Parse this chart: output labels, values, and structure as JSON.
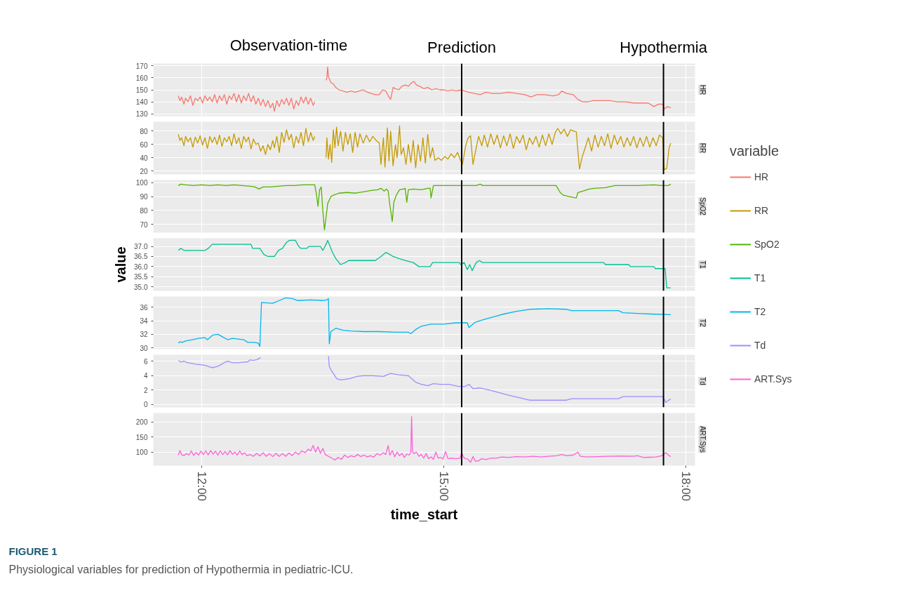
{
  "chart_data": [
    {
      "type": "line",
      "xlim": [
        11.4,
        18.11
      ],
      "xticks": [
        12,
        15,
        18
      ],
      "ylim": [
        128,
        172
      ],
      "yticks": [
        130,
        140,
        150,
        160,
        170
      ],
      "grid": true,
      "tick_labels": "y",
      "legend": "right",
      "legend_title": "variable",
      "annotations": [
        "Observation-time"
      ],
      "ref_lines": [
        {
          "axis": "x",
          "value": 15.22,
          "label": "Prediction",
          "color": "#000000"
        },
        {
          "axis": "x",
          "value": 17.72,
          "label": "Hypothermia",
          "color": "#000000"
        }
      ],
      "series": [
        {
          "name": "HR",
          "color": "#f8766d",
          "x": [
            11.71,
            11.73,
            11.75,
            11.78,
            11.8,
            11.83,
            11.86,
            11.89,
            11.92,
            11.95,
            11.98,
            12.01,
            12.04,
            12.07,
            12.1,
            12.13,
            12.16,
            12.19,
            12.22,
            12.25,
            12.28,
            12.31,
            12.34,
            12.37,
            12.4,
            12.43,
            12.46,
            12.49,
            12.52,
            12.55,
            12.58,
            12.61,
            12.64,
            12.67,
            12.7,
            12.73,
            12.76,
            12.79,
            12.82,
            12.85,
            12.88,
            12.9,
            12.93,
            12.96,
            12.99,
            13.02,
            13.05,
            13.08,
            13.11,
            13.14,
            13.17,
            13.2,
            13.23,
            13.26,
            13.29,
            13.32,
            13.35,
            13.38,
            13.4,
            13.47,
            13.54,
            13.55,
            13.56,
            13.57,
            13.6,
            13.63,
            13.66,
            13.7,
            13.75,
            13.8,
            13.85,
            13.9,
            13.95,
            14.0,
            14.05,
            14.1,
            14.15,
            14.2,
            14.24,
            14.28,
            14.31,
            14.34,
            14.37,
            14.4,
            14.44,
            14.48,
            14.52,
            14.56,
            14.6,
            14.63,
            14.66,
            14.7,
            14.75,
            14.8,
            14.85,
            14.9,
            14.95,
            15.0,
            15.05,
            15.1,
            15.15,
            15.22,
            15.3,
            15.38,
            15.45,
            15.52,
            15.6,
            15.7,
            15.8,
            15.9,
            16.0,
            16.08,
            16.15,
            16.25,
            16.35,
            16.42,
            16.46,
            16.52,
            16.6,
            16.66,
            16.72,
            16.78,
            16.85,
            16.95,
            17.05,
            17.15,
            17.25,
            17.35,
            17.45,
            17.53,
            17.6,
            17.66,
            17.71,
            17.73,
            17.77,
            17.81
          ],
          "values": [
            145,
            141,
            144,
            138,
            143,
            140,
            145,
            137,
            143,
            141,
            144,
            139,
            145,
            141,
            144,
            140,
            146,
            139,
            145,
            141,
            146,
            138,
            145,
            142,
            147,
            140,
            146,
            139,
            145,
            141,
            147,
            140,
            145,
            138,
            143,
            137,
            142,
            136,
            141,
            135,
            139,
            132,
            141,
            136,
            142,
            138,
            143,
            137,
            143,
            134,
            141,
            137,
            144,
            139,
            144,
            138,
            143,
            137,
            140,
            null,
            158,
            160,
            169,
            161,
            156,
            155,
            152,
            150,
            149,
            148,
            149,
            148,
            149,
            150,
            148,
            147,
            146,
            146,
            150,
            149,
            145,
            142,
            152,
            151,
            150,
            153,
            154,
            153,
            156,
            157,
            154,
            153,
            151,
            152,
            150,
            151,
            150,
            150,
            149,
            150,
            149,
            150,
            148,
            147,
            146,
            148,
            147,
            147,
            148,
            147,
            146,
            144,
            146,
            146,
            145,
            146,
            149,
            147,
            146,
            142,
            140,
            140,
            141,
            141,
            141,
            140,
            140,
            139,
            139,
            139,
            136,
            138,
            138,
            134,
            136,
            135
          ]
        }
      ]
    },
    {
      "type": "line",
      "xlim": [
        11.4,
        18.11
      ],
      "xticks": [
        12,
        15,
        18
      ],
      "ylim": [
        15,
        94
      ],
      "yticks": [
        20,
        40,
        60,
        80
      ],
      "grid": true,
      "tick_labels": "y",
      "legend": "right",
      "ref_lines": [
        {
          "axis": "x",
          "value": 15.22,
          "color": "#000000"
        },
        {
          "axis": "x",
          "value": 17.72,
          "color": "#000000"
        }
      ],
      "series": [
        {
          "name": "RR",
          "color": "#c49a00",
          "x": [
            11.71,
            11.73,
            11.75,
            11.78,
            11.8,
            11.83,
            11.86,
            11.89,
            11.92,
            11.95,
            11.98,
            12.01,
            12.04,
            12.07,
            12.1,
            12.13,
            12.16,
            12.19,
            12.22,
            12.25,
            12.28,
            12.31,
            12.34,
            12.37,
            12.4,
            12.43,
            12.46,
            12.49,
            12.52,
            12.55,
            12.58,
            12.61,
            12.64,
            12.67,
            12.7,
            12.73,
            12.76,
            12.79,
            12.82,
            12.85,
            12.88,
            12.9,
            12.93,
            12.96,
            12.99,
            13.02,
            13.05,
            13.08,
            13.11,
            13.14,
            13.17,
            13.2,
            13.23,
            13.26,
            13.29,
            13.32,
            13.35,
            13.38,
            13.4,
            13.47,
            13.54,
            13.55,
            13.57,
            13.59,
            13.61,
            13.63,
            13.65,
            13.67,
            13.69,
            13.72,
            13.75,
            13.78,
            13.81,
            13.84,
            13.87,
            13.9,
            13.93,
            13.96,
            14.0,
            14.04,
            14.08,
            14.12,
            14.16,
            14.2,
            14.22,
            14.25,
            14.27,
            14.3,
            14.32,
            14.34,
            14.37,
            14.4,
            14.42,
            14.45,
            14.47,
            14.5,
            14.53,
            14.56,
            14.59,
            14.62,
            14.65,
            14.68,
            14.71,
            14.74,
            14.77,
            14.8,
            14.83,
            14.86,
            14.89,
            14.93,
            14.97,
            15.01,
            15.05,
            15.09,
            15.13,
            15.17,
            15.2,
            15.23,
            15.27,
            15.3,
            15.33,
            15.36,
            15.4,
            15.43,
            15.47,
            15.5,
            15.54,
            15.58,
            15.62,
            15.66,
            15.7,
            15.74,
            15.78,
            15.82,
            15.86,
            15.9,
            15.94,
            15.98,
            16.02,
            16.06,
            16.1,
            16.14,
            16.18,
            16.22,
            16.26,
            16.3,
            16.34,
            16.38,
            16.41,
            16.45,
            16.49,
            16.53,
            16.57,
            16.61,
            16.64,
            16.66,
            16.68,
            16.71,
            16.75,
            16.79,
            16.83,
            16.87,
            16.91,
            16.95,
            16.99,
            17.03,
            17.07,
            17.11,
            17.15,
            17.19,
            17.23,
            17.27,
            17.31,
            17.35,
            17.39,
            17.43,
            17.47,
            17.51,
            17.55,
            17.59,
            17.63,
            17.67,
            17.71,
            17.73,
            17.76,
            17.79,
            17.81
          ],
          "values": [
            75,
            66,
            70,
            58,
            72,
            64,
            70,
            56,
            71,
            62,
            73,
            59,
            70,
            54,
            72,
            63,
            71,
            60,
            74,
            57,
            70,
            64,
            72,
            58,
            76,
            61,
            70,
            54,
            72,
            64,
            71,
            53,
            68,
            60,
            62,
            50,
            58,
            45,
            60,
            52,
            66,
            55,
            72,
            48,
            78,
            63,
            82,
            67,
            75,
            55,
            72,
            62,
            78,
            58,
            84,
            64,
            78,
            66,
            72,
            null,
            40,
            70,
            38,
            60,
            33,
            82,
            55,
            86,
            58,
            80,
            50,
            78,
            60,
            76,
            48,
            78,
            56,
            76,
            62,
            74,
            64,
            72,
            66,
            62,
            30,
            70,
            26,
            85,
            35,
            80,
            28,
            60,
            40,
            88,
            45,
            55,
            30,
            60,
            33,
            66,
            25,
            60,
            35,
            70,
            32,
            75,
            40,
            55,
            36,
            40,
            36,
            42,
            38,
            46,
            40,
            48,
            38,
            30,
            58,
            70,
            73,
            30,
            55,
            72,
            58,
            74,
            56,
            76,
            60,
            74,
            55,
            73,
            58,
            76,
            54,
            72,
            62,
            74,
            52,
            70,
            60,
            72,
            56,
            74,
            58,
            76,
            60,
            78,
            84,
            76,
            83,
            72,
            82,
            80,
            79,
            50,
            23,
            40,
            55,
            70,
            50,
            74,
            56,
            72,
            58,
            76,
            54,
            74,
            60,
            72,
            56,
            70,
            58,
            72,
            55,
            70,
            57,
            72,
            56,
            70,
            58,
            74,
            70,
            22,
            24,
            55,
            62
          ]
        }
      ]
    },
    {
      "type": "line",
      "xlim": [
        11.4,
        18.11
      ],
      "xticks": [
        12,
        15,
        18
      ],
      "ylim": [
        64,
        102
      ],
      "yticks": [
        70,
        80,
        90,
        100
      ],
      "grid": true,
      "tick_labels": "y",
      "legend": "right",
      "ref_lines": [
        {
          "axis": "x",
          "value": 15.22,
          "color": "#000000"
        },
        {
          "axis": "x",
          "value": 17.72,
          "color": "#000000"
        }
      ],
      "series": [
        {
          "name": "SpO2",
          "color": "#53b400",
          "x": [
            11.71,
            11.74,
            11.8,
            11.9,
            12.0,
            12.1,
            12.2,
            12.3,
            12.4,
            12.5,
            12.6,
            12.66,
            12.71,
            12.76,
            12.85,
            12.95,
            13.05,
            13.15,
            13.25,
            13.35,
            13.4,
            13.42,
            13.44,
            13.46,
            13.48,
            13.5,
            13.52,
            13.54,
            13.56,
            13.6,
            13.63,
            13.7,
            13.8,
            13.9,
            14.0,
            14.1,
            14.18,
            14.22,
            14.26,
            14.29,
            14.31,
            14.33,
            14.36,
            14.38,
            14.41,
            14.45,
            14.5,
            14.52,
            14.54,
            14.56,
            14.62,
            14.72,
            14.8,
            14.83,
            14.84,
            14.87,
            15.0,
            15.22,
            15.4,
            15.45,
            15.48,
            15.8,
            16.2,
            16.39,
            16.44,
            16.48,
            16.55,
            16.64,
            16.66,
            16.72,
            16.8,
            16.86,
            17.0,
            17.12,
            17.4,
            17.6,
            17.7,
            17.78,
            17.81
          ],
          "values": [
            98,
            99,
            98.5,
            98,
            98.5,
            98,
            98.5,
            98,
            98.5,
            98,
            97.5,
            97,
            95.5,
            97,
            97,
            97.5,
            98,
            98,
            98.5,
            98.5,
            98.5,
            92,
            83,
            95,
            97,
            80,
            66,
            75,
            85,
            90,
            91,
            92.5,
            93,
            92.5,
            93.5,
            94.5,
            95,
            96,
            94,
            95.5,
            94,
            84,
            72,
            86,
            91,
            95,
            95.5,
            96,
            86,
            95,
            95.5,
            95,
            96,
            96,
            89,
            98,
            98,
            98,
            98,
            99,
            98,
            98,
            98,
            98,
            93,
            91,
            90,
            89,
            93,
            94,
            95.5,
            96,
            96.5,
            98,
            98,
            98.5,
            98,
            98,
            99
          ]
        }
      ]
    },
    {
      "type": "line",
      "xlim": [
        11.4,
        18.11
      ],
      "xticks": [
        12,
        15,
        18
      ],
      "ylim": [
        34.8,
        37.4
      ],
      "yticks": [
        {
          "value": 35,
          "label": "35.0"
        },
        {
          "value": 35.5,
          "label": "35.5"
        },
        {
          "value": 36,
          "label": "36.0"
        },
        {
          "value": 36.5,
          "label": "36.5"
        },
        {
          "value": 37,
          "label": "37.0"
        }
      ],
      "grid": true,
      "tick_labels": "y",
      "legend": "right",
      "ylabel": "value",
      "ref_lines": [
        {
          "axis": "x",
          "value": 15.22,
          "color": "#000000"
        },
        {
          "axis": "x",
          "value": 17.72,
          "color": "#000000"
        }
      ],
      "series": [
        {
          "name": "T1",
          "color": "#00c094",
          "x": [
            11.71,
            11.74,
            11.78,
            11.9,
            12.0,
            12.04,
            12.08,
            12.13,
            12.3,
            12.61,
            12.63,
            12.72,
            12.77,
            12.82,
            12.9,
            12.95,
            13.0,
            13.05,
            13.09,
            13.16,
            13.2,
            13.23,
            13.3,
            13.33,
            13.47,
            13.5,
            13.54,
            13.56,
            13.59,
            13.62,
            13.66,
            13.72,
            13.78,
            13.82,
            14.15,
            14.22,
            14.28,
            14.33,
            14.37,
            14.44,
            14.52,
            14.62,
            14.69,
            14.83,
            14.86,
            15.07,
            15.19,
            15.21,
            15.25,
            15.29,
            15.32,
            15.35,
            15.4,
            15.44,
            15.48,
            16.98,
            17.0,
            17.29,
            17.31,
            17.6,
            17.62,
            17.74,
            17.76,
            17.81
          ],
          "values": [
            36.8,
            36.9,
            36.8,
            36.8,
            36.8,
            36.8,
            36.9,
            37.1,
            37.1,
            37.1,
            36.9,
            36.9,
            36.6,
            36.5,
            36.5,
            36.8,
            36.9,
            37.2,
            37.3,
            37.3,
            37.0,
            36.9,
            36.9,
            37.0,
            37.0,
            36.8,
            37.1,
            37.3,
            37.0,
            36.7,
            36.4,
            36.1,
            36.2,
            36.3,
            36.3,
            36.5,
            36.7,
            36.6,
            36.5,
            36.4,
            36.3,
            36.2,
            36.0,
            36.0,
            36.2,
            36.2,
            36.2,
            36.1,
            36.2,
            35.85,
            36.1,
            35.8,
            36.2,
            36.3,
            36.2,
            36.2,
            36.1,
            36.1,
            36.0,
            36.0,
            35.9,
            35.9,
            34.95,
            34.95
          ]
        }
      ]
    },
    {
      "type": "line",
      "xlim": [
        11.4,
        18.11
      ],
      "xticks": [
        12,
        15,
        18
      ],
      "ylim": [
        29.8,
        37.6
      ],
      "yticks": [
        30,
        32,
        34,
        36
      ],
      "grid": true,
      "tick_labels": "y",
      "legend": "right",
      "ref_lines": [
        {
          "axis": "x",
          "value": 15.22,
          "color": "#000000"
        },
        {
          "axis": "x",
          "value": 17.72,
          "color": "#000000"
        }
      ],
      "series": [
        {
          "name": "T2",
          "color": "#00b6eb",
          "x": [
            11.71,
            11.73,
            11.76,
            11.8,
            11.88,
            11.96,
            12.04,
            12.07,
            12.14,
            12.2,
            12.26,
            12.32,
            12.38,
            12.45,
            12.52,
            12.57,
            12.65,
            12.7,
            12.72,
            12.74,
            12.88,
            12.96,
            13.04,
            13.12,
            13.19,
            13.35,
            13.5,
            13.55,
            13.57,
            13.58,
            13.6,
            13.66,
            13.75,
            13.85,
            14.0,
            14.2,
            14.4,
            14.56,
            14.59,
            14.65,
            14.72,
            14.84,
            15.0,
            15.15,
            15.29,
            15.31,
            15.39,
            15.5,
            15.65,
            15.74,
            15.9,
            16.06,
            16.3,
            16.52,
            16.58,
            16.9,
            17.16,
            17.22,
            17.4,
            17.57,
            17.81
          ],
          "values": [
            30.7,
            30.9,
            30.8,
            31.0,
            31.2,
            31.4,
            31.5,
            31.2,
            31.9,
            32.0,
            31.6,
            31.2,
            31.4,
            31.3,
            31.2,
            30.8,
            30.8,
            30.7,
            30.2,
            36.7,
            36.6,
            37.0,
            37.4,
            37.3,
            37.0,
            37.1,
            37.0,
            37.1,
            37.3,
            30.6,
            32.4,
            32.9,
            32.6,
            32.5,
            32.4,
            32.4,
            32.3,
            32.3,
            32.1,
            32.7,
            33.2,
            33.5,
            33.5,
            33.7,
            33.7,
            33.0,
            33.8,
            34.2,
            34.7,
            35.0,
            35.4,
            35.7,
            35.8,
            35.7,
            35.5,
            35.5,
            35.5,
            35.2,
            35.1,
            35.0,
            34.9
          ]
        }
      ]
    },
    {
      "type": "line",
      "xlim": [
        11.4,
        18.11
      ],
      "xticks": [
        12,
        15,
        18
      ],
      "ylim": [
        -0.4,
        6.9
      ],
      "yticks": [
        0,
        2,
        4,
        6
      ],
      "grid": true,
      "tick_labels": "y",
      "legend": "right",
      "ref_lines": [
        {
          "axis": "x",
          "value": 15.22,
          "color": "#000000"
        },
        {
          "axis": "x",
          "value": 17.72,
          "color": "#000000"
        }
      ],
      "series": [
        {
          "name": "Td",
          "color": "#a58aff",
          "x": [
            11.71,
            11.74,
            11.78,
            11.83,
            11.92,
            12.0,
            12.05,
            12.1,
            12.14,
            12.2,
            12.25,
            12.29,
            12.33,
            12.38,
            12.45,
            12.52,
            12.57,
            12.6,
            12.63,
            12.68,
            12.73,
            12.78,
            13.57,
            13.58,
            13.6,
            13.63,
            13.67,
            13.72,
            13.78,
            13.84,
            13.92,
            14.0,
            14.12,
            14.25,
            14.34,
            14.45,
            14.56,
            14.6,
            14.65,
            14.72,
            14.8,
            14.87,
            14.95,
            15.06,
            15.18,
            15.26,
            15.31,
            15.36,
            15.45,
            15.6,
            15.8,
            15.95,
            16.06,
            16.3,
            16.52,
            16.58,
            16.8,
            17.16,
            17.22,
            17.5,
            17.71,
            17.75,
            17.81
          ],
          "values": [
            6.1,
            5.9,
            6.0,
            5.8,
            5.6,
            5.5,
            5.4,
            5.2,
            5.1,
            5.3,
            5.6,
            5.9,
            6.0,
            5.8,
            5.8,
            5.9,
            5.9,
            6.2,
            6.1,
            6.2,
            6.5,
            null,
            6.7,
            5.3,
            4.8,
            4.3,
            3.6,
            3.4,
            3.5,
            3.6,
            3.9,
            4.0,
            4.0,
            3.9,
            4.3,
            4.1,
            4.0,
            3.6,
            3.1,
            2.8,
            2.6,
            2.9,
            2.8,
            2.8,
            2.5,
            2.5,
            2.8,
            2.2,
            2.3,
            1.9,
            1.3,
            0.9,
            0.6,
            0.6,
            0.6,
            0.8,
            0.8,
            0.8,
            1.1,
            1.1,
            1.1,
            0.3,
            0.8
          ]
        }
      ]
    },
    {
      "type": "line",
      "xlim": [
        11.4,
        18.11
      ],
      "xticks": [
        {
          "value": 12,
          "label": "12:00"
        },
        {
          "value": 15,
          "label": "15:00"
        },
        {
          "value": 18,
          "label": "18:00"
        }
      ],
      "ylim": [
        55,
        230
      ],
      "yticks": [
        100,
        150,
        200
      ],
      "grid": true,
      "legend": "right",
      "xlabel": "time_start",
      "annotations": [
        "FIGURE 1",
        "Physiological variables for prediction of Hypothermia in pediatric-ICU."
      ],
      "ref_lines": [
        {
          "axis": "x",
          "value": 15.22,
          "color": "#000000"
        },
        {
          "axis": "x",
          "value": 17.72,
          "color": "#000000"
        }
      ],
      "series": [
        {
          "name": "ART.Sys",
          "color": "#fb61d7",
          "x": [
            11.71,
            11.73,
            11.75,
            11.78,
            11.81,
            11.84,
            11.87,
            11.9,
            11.93,
            11.96,
            11.99,
            12.02,
            12.05,
            12.08,
            12.11,
            12.14,
            12.17,
            12.2,
            12.23,
            12.26,
            12.29,
            12.32,
            12.35,
            12.38,
            12.41,
            12.44,
            12.47,
            12.5,
            12.53,
            12.56,
            12.6,
            12.64,
            12.68,
            12.72,
            12.76,
            12.8,
            12.84,
            12.88,
            12.92,
            12.96,
            13.0,
            13.04,
            13.08,
            13.12,
            13.16,
            13.2,
            13.24,
            13.28,
            13.32,
            13.35,
            13.38,
            13.41,
            13.44,
            13.47,
            13.5,
            13.53,
            13.57,
            13.61,
            13.65,
            13.69,
            13.73,
            13.77,
            13.81,
            13.85,
            13.89,
            13.93,
            13.97,
            14.01,
            14.05,
            14.09,
            14.13,
            14.17,
            14.21,
            14.25,
            14.28,
            14.31,
            14.33,
            14.36,
            14.39,
            14.42,
            14.45,
            14.48,
            14.51,
            14.54,
            14.57,
            14.59,
            14.6,
            14.61,
            14.63,
            14.66,
            14.69,
            14.72,
            14.75,
            14.78,
            14.81,
            14.84,
            14.87,
            14.9,
            14.93,
            14.96,
            14.99,
            15.02,
            15.05,
            15.1,
            15.15,
            15.2,
            15.22,
            15.25,
            15.3,
            15.33,
            15.36,
            15.39,
            15.42,
            15.47,
            15.52,
            15.58,
            15.65,
            15.72,
            15.8,
            15.9,
            16.0,
            16.1,
            16.2,
            16.3,
            16.4,
            16.46,
            16.52,
            16.6,
            16.66,
            16.69,
            16.77,
            16.9,
            17.05,
            17.2,
            17.35,
            17.4,
            17.47,
            17.55,
            17.63,
            17.7,
            17.75,
            17.78,
            17.81
          ],
          "values": [
            90,
            105,
            92,
            88,
            95,
            90,
            104,
            89,
            99,
            90,
            103,
            92,
            104,
            91,
            105,
            93,
            103,
            90,
            104,
            92,
            102,
            91,
            105,
            93,
            100,
            90,
            104,
            92,
            98,
            88,
            92,
            86,
            96,
            87,
            98,
            86,
            95,
            85,
            96,
            86,
            95,
            86,
            97,
            88,
            100,
            92,
            104,
            98,
            110,
            104,
            122,
            100,
            118,
            96,
            112,
            92,
            86,
            80,
            74,
            82,
            76,
            90,
            82,
            88,
            84,
            92,
            85,
            90,
            84,
            88,
            83,
            95,
            90,
            98,
            92,
            122,
            90,
            105,
            84,
            100,
            88,
            96,
            82,
            94,
            90,
            100,
            218,
            102,
            95,
            100,
            86,
            92,
            80,
            95,
            78,
            84,
            76,
            100,
            80,
            82,
            77,
            102,
            78,
            80,
            78,
            80,
            98,
            80,
            76,
            66,
            85,
            70,
            70,
            78,
            75,
            80,
            80,
            84,
            82,
            85,
            84,
            86,
            84,
            86,
            88,
            92,
            88,
            90,
            100,
            86,
            84,
            85,
            86,
            87,
            86,
            88,
            82,
            83,
            84,
            88,
            98,
            90,
            85
          ]
        }
      ]
    }
  ]
}
